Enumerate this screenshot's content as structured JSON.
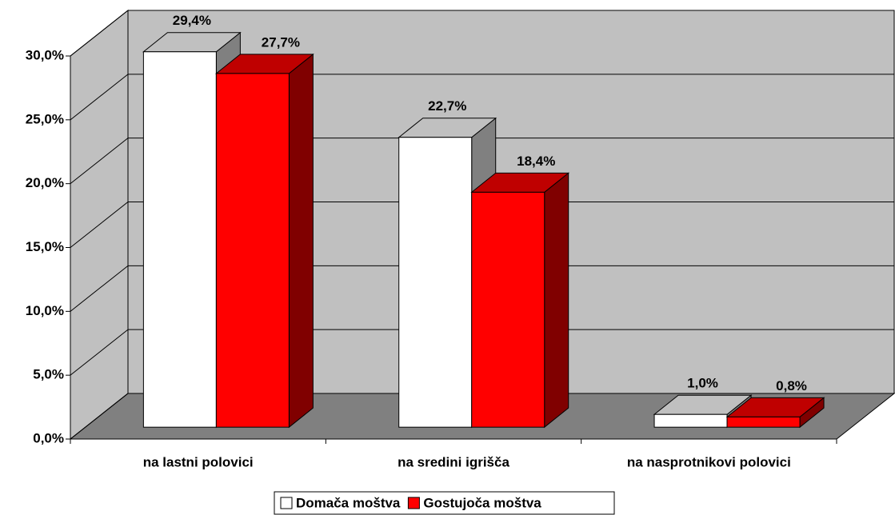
{
  "chart_data": {
    "type": "bar3d",
    "categories": [
      "na lastni polovici",
      "na sredini igrišča",
      "na nasprotnikovi polovici"
    ],
    "series": [
      {
        "name": "Domača moštva",
        "color": "#ffffff",
        "values": [
          29.4,
          22.7,
          1.0
        ],
        "value_labels": [
          "29,4%",
          "22,7%",
          "1,0%"
        ]
      },
      {
        "name": "Gostujoča moštva",
        "color": "#ff0000",
        "values": [
          27.7,
          18.4,
          0.8
        ],
        "value_labels": [
          "27,7%",
          "18,4%",
          "0,8%"
        ]
      }
    ],
    "ylim": [
      0,
      30
    ],
    "yticks": [
      {
        "value": 0,
        "label": "0,0%"
      },
      {
        "value": 5,
        "label": "5,0%"
      },
      {
        "value": 10,
        "label": "10,0%"
      },
      {
        "value": 15,
        "label": "15,0%"
      },
      {
        "value": 20,
        "label": "20,0%"
      },
      {
        "value": 25,
        "label": "25,0%"
      },
      {
        "value": 30,
        "label": "30,0%"
      }
    ],
    "grid": true,
    "legend": "bottom",
    "wall_color": "#c0c0c0",
    "floor_color": "#808080"
  }
}
